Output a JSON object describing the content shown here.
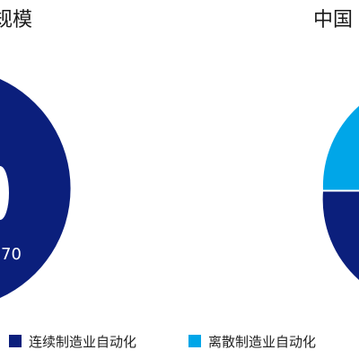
{
  "titles": {
    "left": "规模",
    "right": "中国"
  },
  "colors": {
    "continuous": "#0b1f7c",
    "discrete": "#00a6e8"
  },
  "chart_data": {
    "type": "pie",
    "data_labels": [
      "70"
    ],
    "legend": {
      "placement": "bottom",
      "entries": [
        "连续制造业自动化",
        "离散制造业自动化"
      ]
    }
  }
}
